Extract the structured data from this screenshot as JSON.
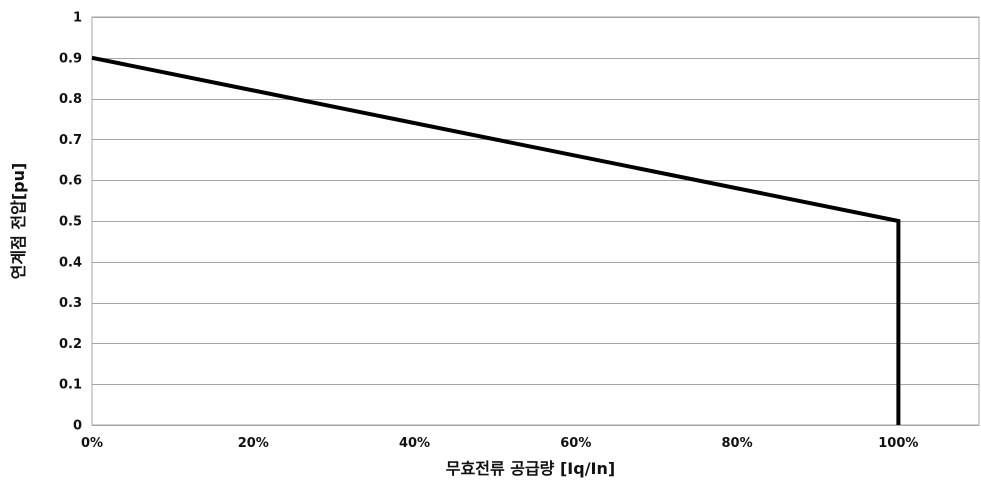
{
  "chart_data": {
    "type": "line",
    "title": "",
    "xlabel": "무효전류 공급량 [Iq/In]",
    "ylabel": "연계점 전압[pu]",
    "xlim": [
      0,
      110
    ],
    "ylim": [
      0,
      1
    ],
    "x_ticks": [
      0,
      20,
      40,
      60,
      80,
      100
    ],
    "x_tick_labels": [
      "0%",
      "20%",
      "40%",
      "60%",
      "80%",
      "100%"
    ],
    "y_ticks": [
      0,
      0.1,
      0.2,
      0.3,
      0.4,
      0.5,
      0.6,
      0.7,
      0.8,
      0.9,
      1
    ],
    "y_tick_labels": [
      "0",
      "0.1",
      "0.2",
      "0.3",
      "0.4",
      "0.5",
      "0.6",
      "0.7",
      "0.8",
      "0.9",
      "1"
    ],
    "grid": "horizontal",
    "legend": "none",
    "series": [
      {
        "x": [
          0,
          100,
          100
        ],
        "y": [
          0.9,
          0.5,
          0
        ],
        "color": "#000000"
      }
    ]
  }
}
